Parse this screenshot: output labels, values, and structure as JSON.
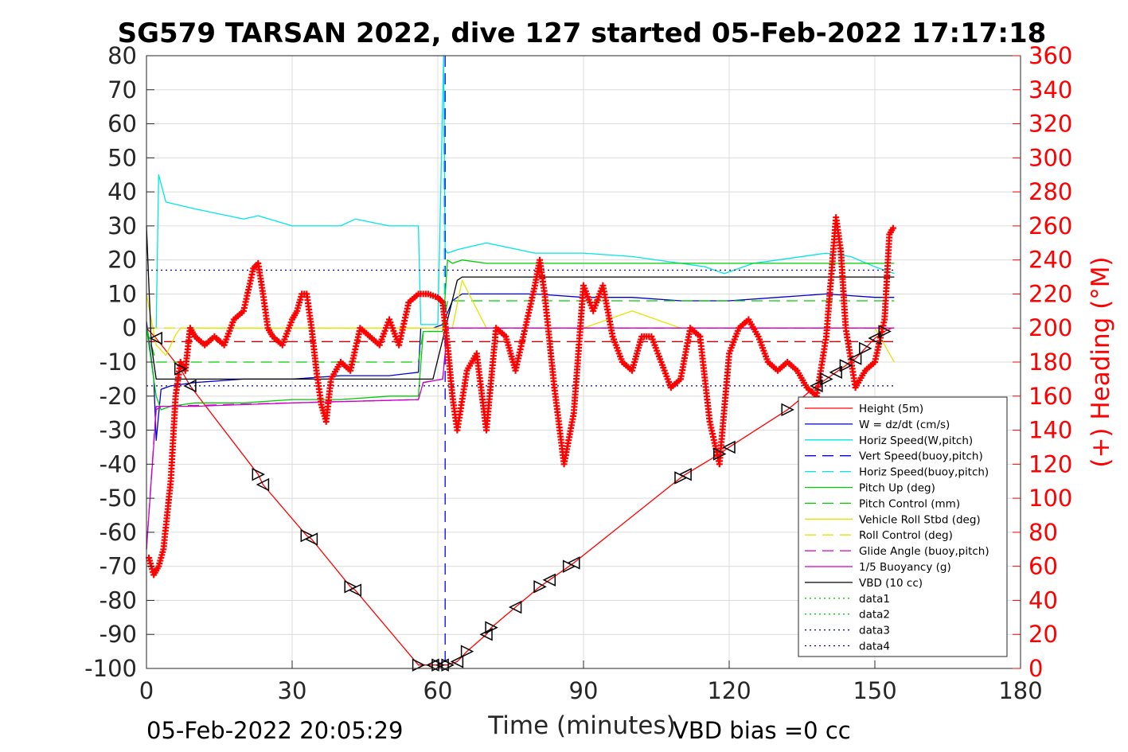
{
  "chart_data": {
    "type": "line",
    "title": "SG579 TARSAN 2022, dive 127 started 05-Feb-2022 17:17:18",
    "xlabel": "Time (minutes)",
    "ylabel_right": "(+) Heading (°M)",
    "footer_left": "05-Feb-2022 20:05:29",
    "footer_right": "VBD bias =0 cc",
    "xlim": [
      0,
      180
    ],
    "ylim": [
      -100,
      80
    ],
    "ylim_right": [
      0,
      360
    ],
    "x_ticks": [
      0,
      30,
      60,
      90,
      120,
      150,
      180
    ],
    "y_ticks": [
      80,
      70,
      60,
      50,
      40,
      30,
      20,
      10,
      0,
      -10,
      -20,
      -30,
      -40,
      -50,
      -60,
      -70,
      -80,
      -90,
      -100
    ],
    "y_ticks_right": [
      360,
      340,
      320,
      300,
      280,
      260,
      240,
      220,
      200,
      180,
      160,
      140,
      120,
      100,
      80,
      60,
      40,
      20,
      0
    ],
    "grid": true,
    "legend_position": "bottom-right",
    "series": [
      {
        "name": "Height (5m)",
        "color": "#ff0000",
        "style": "solid",
        "x": [
          0,
          2,
          7,
          9,
          23,
          24,
          33,
          34,
          42,
          43,
          56,
          59,
          60,
          61,
          62,
          64,
          66,
          70,
          71,
          76,
          81,
          83,
          87,
          88,
          110,
          111,
          118,
          120,
          132,
          138,
          140,
          142,
          144,
          146,
          148,
          150,
          152,
          153.5
        ],
        "y": [
          0,
          -3,
          -12,
          -17,
          -43,
          -46,
          -61,
          -62,
          -76,
          -77,
          -99,
          -99,
          -99,
          -99,
          -99,
          -98,
          -95,
          -90,
          -88,
          -82,
          -76,
          -74,
          -70,
          -69,
          -44,
          -43,
          -37,
          -35,
          -24,
          -17,
          -15,
          -13,
          -11,
          -9,
          -6,
          -3,
          -1,
          0
        ]
      },
      {
        "name": "W = dz/dt (cm/s)",
        "color": "#0000cc",
        "style": "solid",
        "x": [
          0,
          1.5,
          2,
          3,
          5,
          10,
          20,
          30,
          40,
          50,
          56,
          56.5,
          59,
          61,
          63,
          65,
          70,
          80,
          90,
          100,
          110,
          120,
          130,
          140,
          150,
          154
        ],
        "y": [
          2,
          -15,
          -33,
          -18,
          -17,
          -16,
          -15,
          -15,
          -14,
          -14,
          -13,
          0,
          0,
          1,
          8,
          10,
          10,
          10,
          9,
          9,
          8,
          8,
          9,
          10,
          9,
          9
        ]
      },
      {
        "name": "Horiz Speed(W,pitch)",
        "color": "#00e5e5",
        "style": "solid",
        "x": [
          0,
          2,
          2.5,
          4,
          10,
          20,
          23,
          30,
          40,
          43,
          50,
          56,
          56.5,
          60,
          61.2,
          61.5,
          62,
          64,
          70,
          80,
          90,
          100,
          110,
          115,
          119,
          125,
          130,
          140,
          145,
          150,
          154
        ],
        "y": [
          0,
          0,
          45,
          37,
          35,
          32,
          33,
          30,
          30,
          32,
          30,
          30,
          1,
          1,
          80,
          23,
          22,
          23,
          25,
          22,
          22,
          21,
          19,
          18,
          16,
          19,
          20,
          22,
          21,
          18,
          16
        ]
      },
      {
        "name": "Vert Speed(buoy,pitch)",
        "color": "#0000ff",
        "style": "dashed",
        "x": [
          61.5,
          61.5
        ],
        "y": [
          80,
          -100
        ]
      },
      {
        "name": "Horiz Speed(buoy,pitch)",
        "color": "#00e5e5",
        "style": "dashed",
        "x": [
          61.2,
          61.4
        ],
        "y": [
          80,
          0
        ]
      },
      {
        "name": "Pitch Up (deg)",
        "color": "#00cc00",
        "style": "solid",
        "x": [
          0,
          2,
          3,
          5,
          10,
          20,
          30,
          40,
          50,
          56,
          57,
          61,
          62,
          63,
          65,
          70,
          80,
          90,
          100,
          110,
          120,
          130,
          140,
          150,
          154
        ],
        "y": [
          0,
          -20,
          -24,
          -23,
          -22,
          -22,
          -21,
          -21,
          -20,
          -20,
          -1,
          -1,
          20,
          19,
          20,
          19,
          19,
          19,
          19,
          19,
          19,
          19,
          19,
          19,
          19
        ]
      },
      {
        "name": "Pitch Control (mm)",
        "color": "#00cc00",
        "style": "dashed",
        "x": [
          0,
          2,
          3,
          56,
          57,
          61,
          62,
          154
        ],
        "y": [
          0,
          -10,
          -10,
          -10,
          -1,
          -1,
          8,
          8
        ]
      },
      {
        "name": "Vehicle Roll Stbd (deg)",
        "color": "#e5e500",
        "style": "solid",
        "x": [
          0,
          2,
          4,
          6,
          7,
          20,
          30,
          40,
          55,
          61,
          63,
          65,
          70,
          80,
          90,
          100,
          110,
          120,
          130,
          140,
          150,
          154
        ],
        "y": [
          10,
          -5,
          -8,
          -2,
          0,
          0,
          0,
          0,
          0,
          0,
          0,
          14,
          0,
          0,
          0,
          5,
          0,
          0,
          0,
          0,
          0,
          -10
        ]
      },
      {
        "name": "Roll Control (deg)",
        "color": "#e5e500",
        "style": "dashed",
        "x": [
          0,
          154
        ],
        "y": [
          0,
          0
        ]
      },
      {
        "name": "Glide Angle (buoy,pitch)",
        "color": "#cc00cc",
        "style": "dashed",
        "x": [
          0,
          2,
          3,
          56,
          57,
          61,
          62,
          154
        ],
        "y": [
          -65,
          -23,
          -23,
          -21,
          -16,
          -15,
          0,
          0
        ]
      },
      {
        "name": "1/5 Buoyancy (g)",
        "color": "#cc00cc",
        "style": "solid",
        "x": [
          0,
          2,
          3,
          10,
          30,
          56,
          57,
          61,
          62,
          154
        ],
        "y": [
          -65,
          -24,
          -23,
          -23,
          -22,
          -21,
          -16,
          -15,
          0,
          0
        ]
      },
      {
        "name": "VBD (10 cc)",
        "color": "#000000",
        "style": "solid",
        "x": [
          0,
          1,
          2,
          59,
          64,
          65,
          154
        ],
        "y": [
          30,
          -5,
          -15,
          -15,
          14,
          15,
          15
        ]
      },
      {
        "name": "data1",
        "color": "#00cc00",
        "style": "dotted",
        "x": [],
        "y": []
      },
      {
        "name": "data2",
        "color": "#00cc00",
        "style": "dotted",
        "x": [],
        "y": []
      },
      {
        "name": "data3",
        "color": "#000080",
        "style": "dotted",
        "x": [
          0,
          154
        ],
        "y": [
          17,
          17
        ]
      },
      {
        "name": "data4",
        "color": "#000080",
        "style": "dotted",
        "x": [
          0,
          154
        ],
        "y": [
          -17,
          -17
        ]
      }
    ],
    "reference_line": {
      "color": "#cc0000",
      "style": "dashed",
      "x": [
        0,
        154
      ],
      "y": [
        -4,
        -4
      ]
    },
    "heading": {
      "axis": "right",
      "color": "#ff0000",
      "marker": "+",
      "x": [
        0.5,
        1.5,
        2.5,
        3.5,
        5,
        6,
        7,
        8,
        9,
        10,
        12,
        14,
        16,
        18,
        20,
        22,
        23,
        24,
        25,
        26,
        28,
        30,
        31,
        32,
        33,
        34,
        35,
        36,
        37,
        38,
        40,
        42,
        44,
        46,
        48,
        50,
        52,
        54,
        56,
        58,
        60,
        61,
        62,
        63,
        64,
        66,
        68,
        70,
        72,
        74,
        76,
        78,
        80,
        81,
        82,
        84,
        86,
        88,
        90,
        92,
        94,
        96,
        98,
        100,
        102,
        104,
        106,
        108,
        110,
        112,
        114,
        116,
        118,
        120,
        122,
        124,
        126,
        128,
        130,
        132,
        134,
        136,
        138,
        140,
        141,
        142,
        143,
        144,
        146,
        148,
        150,
        152,
        153,
        154
      ],
      "y": [
        65,
        55,
        60,
        70,
        110,
        160,
        180,
        175,
        200,
        195,
        190,
        195,
        190,
        205,
        210,
        235,
        238,
        220,
        200,
        195,
        190,
        205,
        210,
        220,
        220,
        200,
        175,
        155,
        145,
        170,
        180,
        175,
        200,
        195,
        190,
        205,
        190,
        215,
        220,
        220,
        218,
        215,
        190,
        160,
        140,
        175,
        185,
        140,
        200,
        195,
        175,
        200,
        225,
        240,
        220,
        165,
        120,
        150,
        225,
        210,
        225,
        195,
        180,
        175,
        195,
        195,
        180,
        165,
        170,
        200,
        195,
        145,
        120,
        185,
        200,
        205,
        195,
        180,
        175,
        180,
        175,
        165,
        160,
        195,
        230,
        265,
        245,
        200,
        165,
        175,
        180,
        205,
        255,
        260
      ]
    },
    "markers": {
      "shape": "triangle",
      "color": "#000000",
      "x": [
        2,
        7,
        9,
        23,
        24,
        33,
        34,
        42,
        43,
        56,
        59,
        60,
        61,
        62,
        64,
        66,
        70,
        71,
        76,
        81,
        83,
        87,
        88,
        110,
        111,
        118,
        120,
        132,
        138,
        140,
        142,
        144,
        146,
        148,
        150,
        152
      ],
      "y": [
        -3,
        -12,
        -17,
        -43,
        -46,
        -61,
        -62,
        -76,
        -77,
        -99,
        -99,
        -99,
        -99,
        -99,
        -98,
        -95,
        -90,
        -88,
        -82,
        -76,
        -74,
        -70,
        -69,
        -44,
        -43,
        -37,
        -35,
        -24,
        -17,
        -15,
        -13,
        -11,
        -9,
        -6,
        -3,
        -1
      ]
    }
  }
}
